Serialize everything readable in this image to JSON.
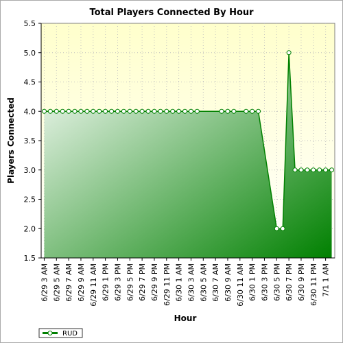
{
  "chart_data": {
    "type": "area",
    "title": "Total Players Connected By Hour",
    "xlabel": "Hour",
    "ylabel": "Players Connected",
    "ylim": [
      1.5,
      5.5
    ],
    "yticks": [
      "1.5",
      "2.0",
      "2.5",
      "3.0",
      "3.5",
      "4.0",
      "4.5",
      "5.0",
      "5.5"
    ],
    "grid": true,
    "legend_position": "bottom-left",
    "x_tick_labels": [
      "6/29 3 AM",
      "6/29 5 AM",
      "6/29 7 AM",
      "6/29 9 AM",
      "6/29 11 AM",
      "6/29 1 PM",
      "6/29 3 PM",
      "6/29 5 PM",
      "6/29 7 PM",
      "6/29 9 PM",
      "6/29 11 PM",
      "6/30 1 AM",
      "6/30 3 AM",
      "6/30 5 AM",
      "6/30 7 AM",
      "6/30 9 AM",
      "6/30 11 AM",
      "6/30 1 PM",
      "6/30 3 PM",
      "6/30 5 PM",
      "6/30 7 PM",
      "6/30 9 PM",
      "6/30 11 PM",
      "7/1 1 AM"
    ],
    "series": [
      {
        "name": "RUD",
        "color": "#008000",
        "points": [
          {
            "x": 0,
            "y": 4
          },
          {
            "x": 1,
            "y": 4
          },
          {
            "x": 2,
            "y": 4
          },
          {
            "x": 3,
            "y": 4
          },
          {
            "x": 4,
            "y": 4
          },
          {
            "x": 5,
            "y": 4
          },
          {
            "x": 6,
            "y": 4
          },
          {
            "x": 7,
            "y": 4
          },
          {
            "x": 8,
            "y": 4
          },
          {
            "x": 9,
            "y": 4
          },
          {
            "x": 10,
            "y": 4
          },
          {
            "x": 11,
            "y": 4
          },
          {
            "x": 12,
            "y": 4
          },
          {
            "x": 13,
            "y": 4
          },
          {
            "x": 14,
            "y": 4
          },
          {
            "x": 15,
            "y": 4
          },
          {
            "x": 16,
            "y": 4
          },
          {
            "x": 17,
            "y": 4
          },
          {
            "x": 18,
            "y": 4
          },
          {
            "x": 19,
            "y": 4
          },
          {
            "x": 20,
            "y": 4
          },
          {
            "x": 21,
            "y": 4
          },
          {
            "x": 22,
            "y": 4
          },
          {
            "x": 23,
            "y": 4
          },
          {
            "x": 24,
            "y": 4
          },
          {
            "x": 25,
            "y": 4
          },
          {
            "x": 29,
            "y": 4
          },
          {
            "x": 30,
            "y": 4
          },
          {
            "x": 31,
            "y": 4
          },
          {
            "x": 33,
            "y": 4
          },
          {
            "x": 34,
            "y": 4
          },
          {
            "x": 35,
            "y": 4
          },
          {
            "x": 38,
            "y": 2
          },
          {
            "x": 39,
            "y": 2
          },
          {
            "x": 40,
            "y": 5
          },
          {
            "x": 41,
            "y": 3
          },
          {
            "x": 42,
            "y": 3
          },
          {
            "x": 43,
            "y": 3
          },
          {
            "x": 44,
            "y": 3
          },
          {
            "x": 45,
            "y": 3
          },
          {
            "x": 46,
            "y": 3
          },
          {
            "x": 47,
            "y": 3
          }
        ]
      }
    ]
  }
}
